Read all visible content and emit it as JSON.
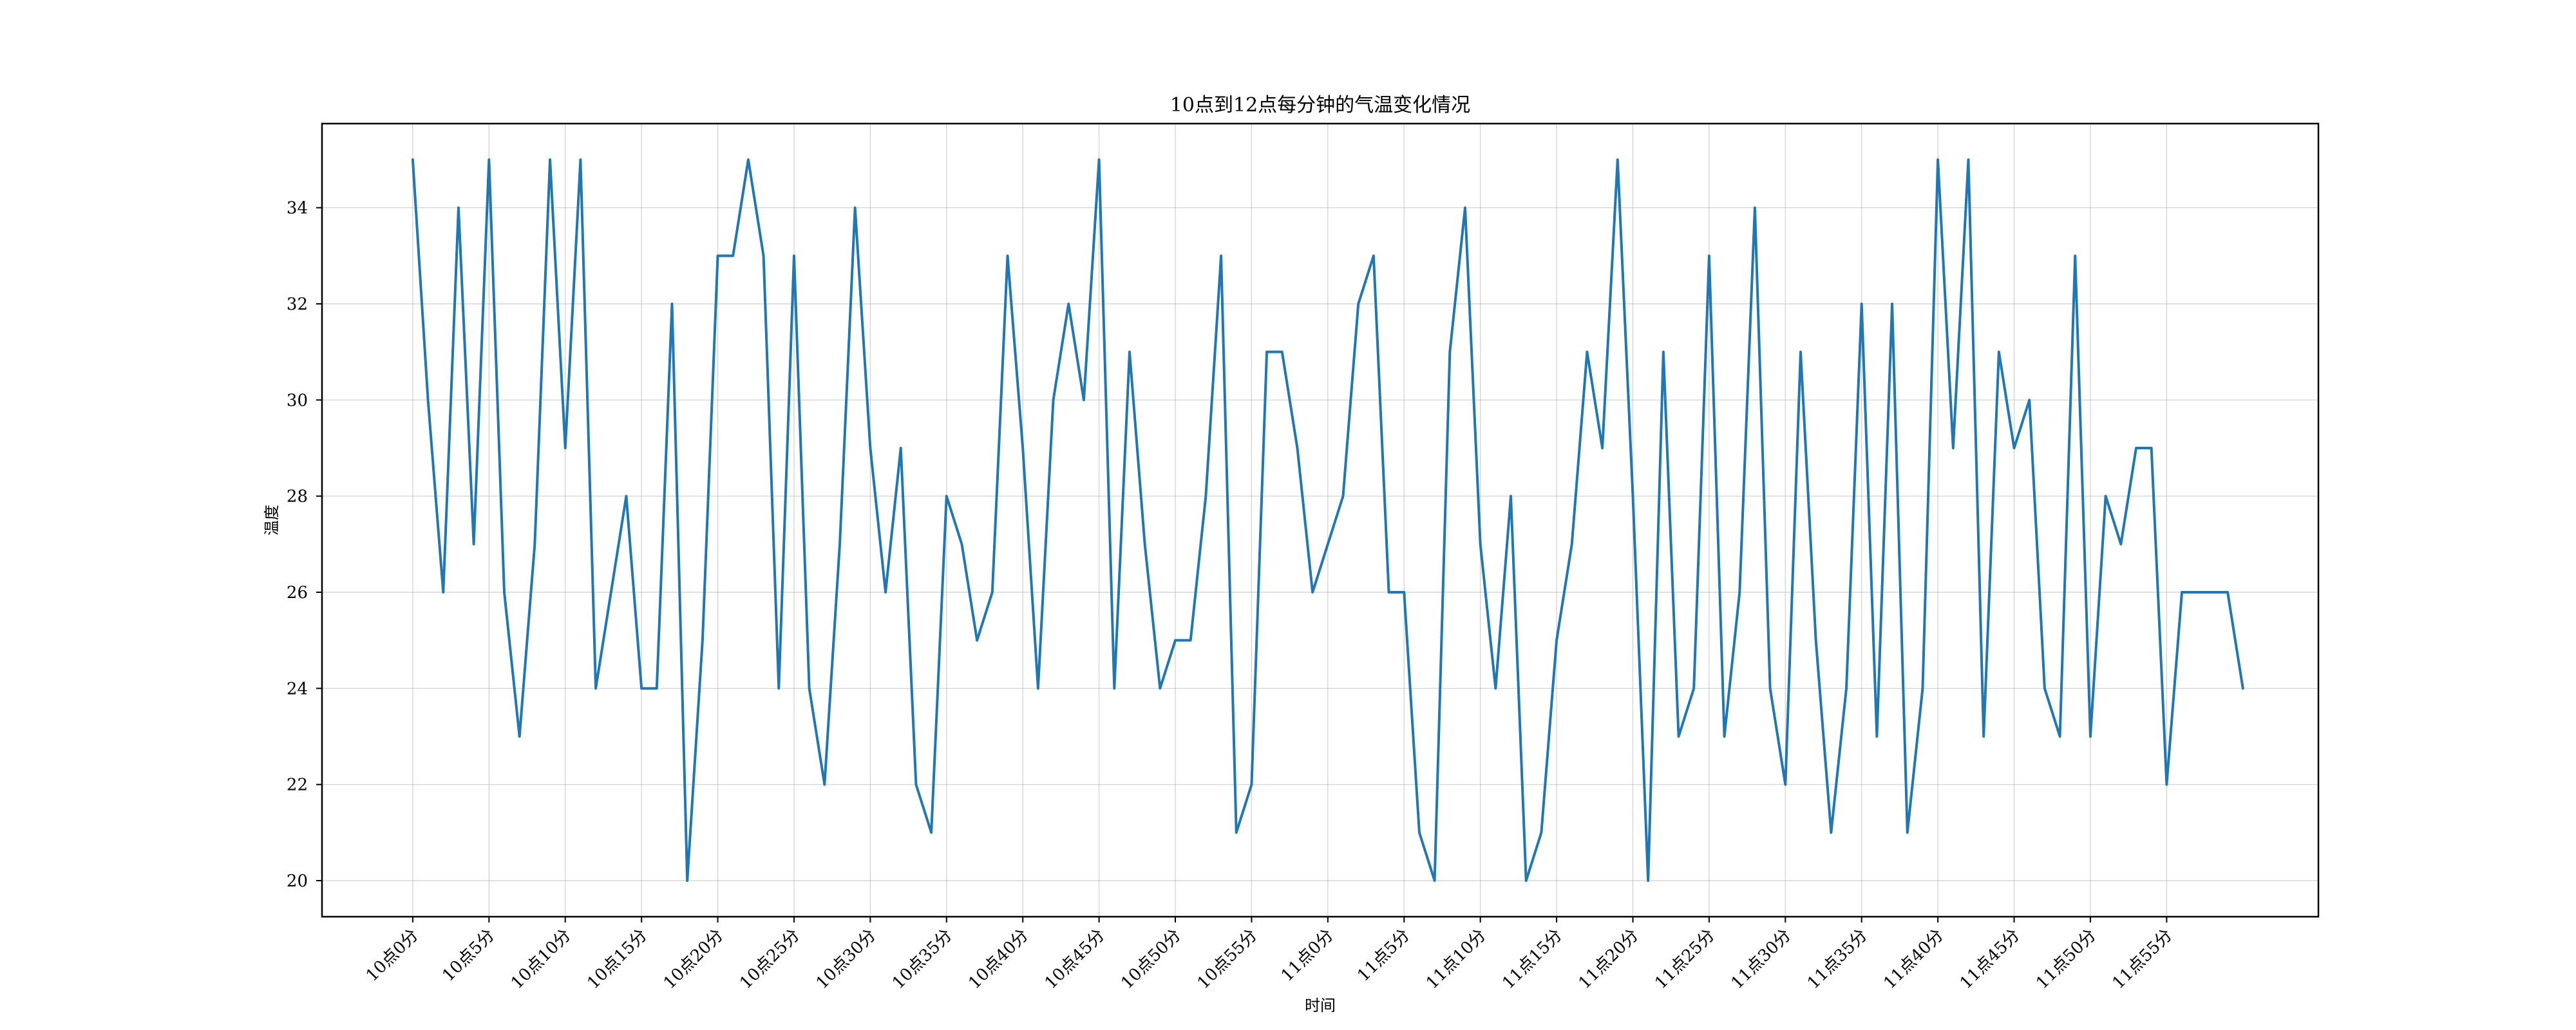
{
  "chart_data": {
    "type": "line",
    "title": "10点到12点每分钟的气温变化情况",
    "xlabel": "时间",
    "ylabel": "温度",
    "ylim": [
      19.25,
      35.75
    ],
    "yticks": [
      20,
      22,
      24,
      26,
      28,
      30,
      32,
      34
    ],
    "x_index_range": [
      -5.95,
      124.95
    ],
    "xticks": [
      {
        "index": 0,
        "label": "10点0分"
      },
      {
        "index": 5,
        "label": "10点5分"
      },
      {
        "index": 10,
        "label": "10点10分"
      },
      {
        "index": 15,
        "label": "10点15分"
      },
      {
        "index": 20,
        "label": "10点20分"
      },
      {
        "index": 25,
        "label": "10点25分"
      },
      {
        "index": 30,
        "label": "10点30分"
      },
      {
        "index": 35,
        "label": "10点35分"
      },
      {
        "index": 40,
        "label": "10点40分"
      },
      {
        "index": 45,
        "label": "10点45分"
      },
      {
        "index": 50,
        "label": "10点50分"
      },
      {
        "index": 55,
        "label": "10点55分"
      },
      {
        "index": 60,
        "label": "11点0分"
      },
      {
        "index": 65,
        "label": "11点5分"
      },
      {
        "index": 70,
        "label": "11点10分"
      },
      {
        "index": 75,
        "label": "11点15分"
      },
      {
        "index": 80,
        "label": "11点20分"
      },
      {
        "index": 85,
        "label": "11点25分"
      },
      {
        "index": 90,
        "label": "11点30分"
      },
      {
        "index": 95,
        "label": "11点35分"
      },
      {
        "index": 100,
        "label": "11点40分"
      },
      {
        "index": 105,
        "label": "11点45分"
      },
      {
        "index": 110,
        "label": "11点50分"
      },
      {
        "index": 115,
        "label": "11点55分"
      }
    ],
    "grid": true,
    "series": [
      {
        "color": "#1f77b4",
        "values": [
          35,
          30,
          26,
          34,
          27,
          35,
          26,
          23,
          27,
          35,
          29,
          35,
          24,
          26,
          28,
          24,
          24,
          32,
          20,
          25,
          33,
          33,
          35,
          33,
          24,
          33,
          24,
          22,
          27,
          34,
          29,
          26,
          29,
          22,
          21,
          28,
          27,
          25,
          26,
          33,
          29,
          24,
          30,
          32,
          30,
          35,
          24,
          31,
          27,
          24,
          25,
          25,
          28,
          33,
          21,
          22,
          31,
          31,
          29,
          26,
          27,
          28,
          32,
          33,
          26,
          26,
          21,
          20,
          31,
          34,
          27,
          24,
          28,
          20,
          21,
          25,
          27,
          31,
          29,
          35,
          28,
          20,
          31,
          23,
          24,
          33,
          23,
          26,
          34,
          24,
          22,
          31,
          25,
          21,
          24,
          32,
          23,
          32,
          21,
          24,
          35,
          29,
          35,
          23,
          31,
          29,
          30,
          24,
          23,
          33,
          23,
          28,
          27,
          29,
          29,
          22,
          26,
          26,
          26,
          26,
          24
        ]
      }
    ]
  }
}
